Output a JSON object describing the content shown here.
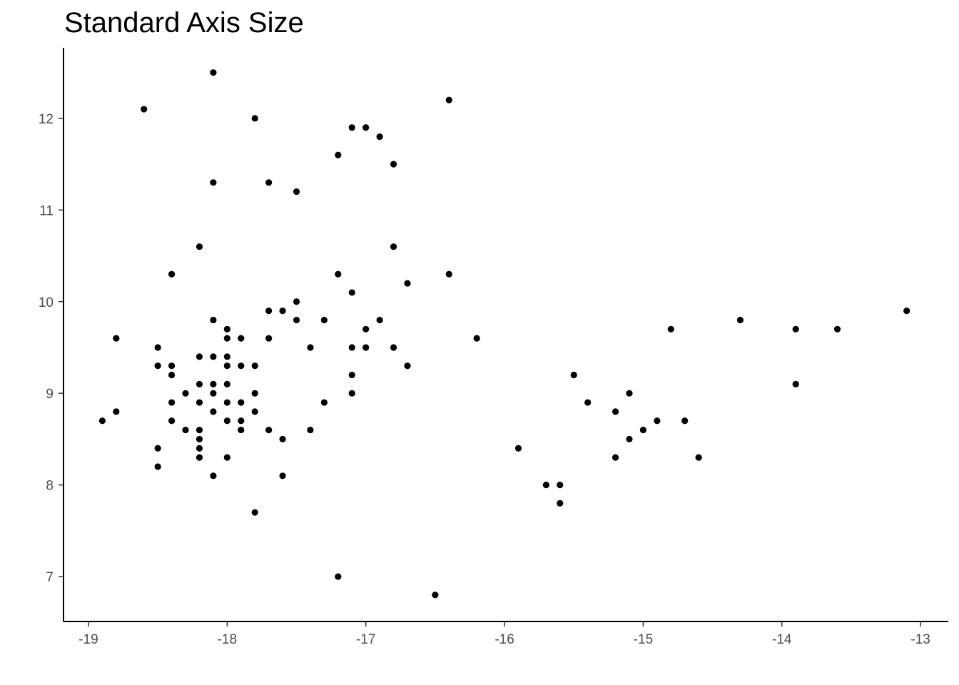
{
  "chart_data": {
    "type": "scatter",
    "title": "Standard Axis Size",
    "xlabel": "",
    "ylabel": "",
    "xlim": [
      -19.18,
      -12.8
    ],
    "ylim": [
      6.51,
      12.77
    ],
    "x_ticks": [
      -19,
      -18,
      -17,
      -16,
      -15,
      -14,
      -13
    ],
    "y_ticks": [
      7,
      8,
      9,
      10,
      11,
      12
    ],
    "x_tick_labels": [
      "-19",
      "-18",
      "-17",
      "-16",
      "-15",
      "-14",
      "-13"
    ],
    "y_tick_labels": [
      "7",
      "8",
      "9",
      "10",
      "11",
      "12"
    ],
    "grid": false,
    "point_color": "#000000",
    "axis_color": "#000000",
    "tick_label_color": "#4d4d4d",
    "points": [
      {
        "x": -18.9,
        "y": 8.7
      },
      {
        "x": -18.8,
        "y": 9.6
      },
      {
        "x": -18.8,
        "y": 8.8
      },
      {
        "x": -18.6,
        "y": 12.1
      },
      {
        "x": -18.5,
        "y": 9.5
      },
      {
        "x": -18.5,
        "y": 9.3
      },
      {
        "x": -18.5,
        "y": 8.4
      },
      {
        "x": -18.5,
        "y": 8.2
      },
      {
        "x": -18.4,
        "y": 10.3
      },
      {
        "x": -18.4,
        "y": 9.3
      },
      {
        "x": -18.4,
        "y": 9.2
      },
      {
        "x": -18.4,
        "y": 8.9
      },
      {
        "x": -18.4,
        "y": 8.7
      },
      {
        "x": -18.3,
        "y": 9.0
      },
      {
        "x": -18.3,
        "y": 8.6
      },
      {
        "x": -18.2,
        "y": 10.6
      },
      {
        "x": -18.2,
        "y": 9.4
      },
      {
        "x": -18.2,
        "y": 9.1
      },
      {
        "x": -18.2,
        "y": 8.9
      },
      {
        "x": -18.2,
        "y": 8.6
      },
      {
        "x": -18.2,
        "y": 8.5
      },
      {
        "x": -18.2,
        "y": 8.4
      },
      {
        "x": -18.2,
        "y": 8.3
      },
      {
        "x": -18.1,
        "y": 12.5
      },
      {
        "x": -18.1,
        "y": 11.3
      },
      {
        "x": -18.1,
        "y": 9.8
      },
      {
        "x": -18.1,
        "y": 9.4
      },
      {
        "x": -18.1,
        "y": 9.1
      },
      {
        "x": -18.1,
        "y": 9.0
      },
      {
        "x": -18.1,
        "y": 8.8
      },
      {
        "x": -18.1,
        "y": 8.1
      },
      {
        "x": -18.0,
        "y": 9.7
      },
      {
        "x": -18.0,
        "y": 9.6
      },
      {
        "x": -18.0,
        "y": 9.4
      },
      {
        "x": -18.0,
        "y": 9.3
      },
      {
        "x": -18.0,
        "y": 9.1
      },
      {
        "x": -18.0,
        "y": 8.9
      },
      {
        "x": -18.0,
        "y": 8.7
      },
      {
        "x": -18.0,
        "y": 8.3
      },
      {
        "x": -17.9,
        "y": 9.6
      },
      {
        "x": -17.9,
        "y": 9.3
      },
      {
        "x": -17.9,
        "y": 8.9
      },
      {
        "x": -17.9,
        "y": 8.7
      },
      {
        "x": -17.9,
        "y": 8.6
      },
      {
        "x": -17.8,
        "y": 12.0
      },
      {
        "x": -17.8,
        "y": 9.3
      },
      {
        "x": -17.8,
        "y": 9.0
      },
      {
        "x": -17.8,
        "y": 8.8
      },
      {
        "x": -17.8,
        "y": 7.7
      },
      {
        "x": -17.7,
        "y": 11.3
      },
      {
        "x": -17.7,
        "y": 9.9
      },
      {
        "x": -17.7,
        "y": 9.6
      },
      {
        "x": -17.7,
        "y": 8.6
      },
      {
        "x": -17.6,
        "y": 9.9
      },
      {
        "x": -17.6,
        "y": 8.5
      },
      {
        "x": -17.6,
        "y": 8.1
      },
      {
        "x": -17.5,
        "y": 11.2
      },
      {
        "x": -17.5,
        "y": 10.0
      },
      {
        "x": -17.5,
        "y": 9.8
      },
      {
        "x": -17.4,
        "y": 9.5
      },
      {
        "x": -17.4,
        "y": 8.6
      },
      {
        "x": -17.3,
        "y": 9.8
      },
      {
        "x": -17.3,
        "y": 8.9
      },
      {
        "x": -17.2,
        "y": 11.6
      },
      {
        "x": -17.2,
        "y": 10.3
      },
      {
        "x": -17.2,
        "y": 7.0
      },
      {
        "x": -17.1,
        "y": 11.9
      },
      {
        "x": -17.1,
        "y": 10.1
      },
      {
        "x": -17.1,
        "y": 9.5
      },
      {
        "x": -17.1,
        "y": 9.2
      },
      {
        "x": -17.1,
        "y": 9.0
      },
      {
        "x": -17.0,
        "y": 11.9
      },
      {
        "x": -17.0,
        "y": 9.7
      },
      {
        "x": -17.0,
        "y": 9.5
      },
      {
        "x": -16.9,
        "y": 11.8
      },
      {
        "x": -16.9,
        "y": 9.8
      },
      {
        "x": -16.8,
        "y": 11.5
      },
      {
        "x": -16.8,
        "y": 10.6
      },
      {
        "x": -16.8,
        "y": 9.5
      },
      {
        "x": -16.7,
        "y": 10.2
      },
      {
        "x": -16.7,
        "y": 9.3
      },
      {
        "x": -16.5,
        "y": 6.8
      },
      {
        "x": -16.4,
        "y": 12.2
      },
      {
        "x": -16.4,
        "y": 10.3
      },
      {
        "x": -16.2,
        "y": 9.6
      },
      {
        "x": -15.9,
        "y": 8.4
      },
      {
        "x": -15.7,
        "y": 8.0
      },
      {
        "x": -15.6,
        "y": 8.0
      },
      {
        "x": -15.6,
        "y": 7.8
      },
      {
        "x": -15.5,
        "y": 9.2
      },
      {
        "x": -15.4,
        "y": 8.9
      },
      {
        "x": -15.2,
        "y": 8.8
      },
      {
        "x": -15.2,
        "y": 8.3
      },
      {
        "x": -15.1,
        "y": 9.0
      },
      {
        "x": -15.1,
        "y": 8.5
      },
      {
        "x": -15.0,
        "y": 8.6
      },
      {
        "x": -14.9,
        "y": 8.7
      },
      {
        "x": -14.8,
        "y": 9.7
      },
      {
        "x": -14.7,
        "y": 8.7
      },
      {
        "x": -14.6,
        "y": 8.3
      },
      {
        "x": -14.3,
        "y": 9.8
      },
      {
        "x": -13.9,
        "y": 9.7
      },
      {
        "x": -13.9,
        "y": 9.1
      },
      {
        "x": -13.6,
        "y": 9.7
      },
      {
        "x": -13.1,
        "y": 9.9
      }
    ]
  }
}
